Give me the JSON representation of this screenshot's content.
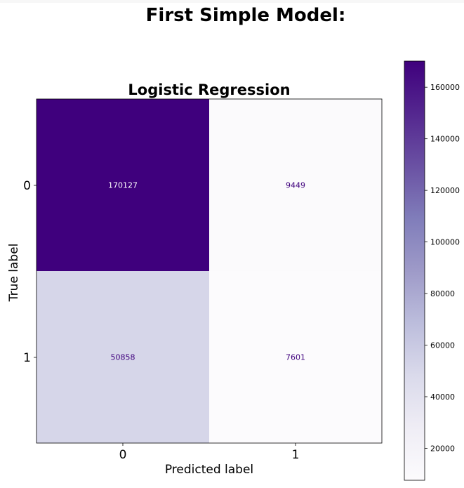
{
  "figure": {
    "suptitle": "First Simple Model:"
  },
  "chart_data": {
    "type": "heatmap",
    "title": "Logistic Regression",
    "xlabel": "Predicted label",
    "ylabel": "True label",
    "x_categories": [
      "0",
      "1"
    ],
    "y_categories": [
      "0",
      "1"
    ],
    "matrix": [
      [
        170127,
        9449
      ],
      [
        50858,
        7601
      ]
    ],
    "colormap": "Purples",
    "colorbar": {
      "range": [
        7601,
        170127
      ],
      "ticks": [
        20000,
        40000,
        60000,
        80000,
        100000,
        120000,
        140000,
        160000
      ],
      "tick_labels": [
        "20000",
        "40000",
        "60000",
        "80000",
        "100000",
        "120000",
        "140000",
        "160000"
      ]
    },
    "colors": {
      "text_on_dark": "#ffffff",
      "text_on_light": "#3f007d"
    }
  }
}
